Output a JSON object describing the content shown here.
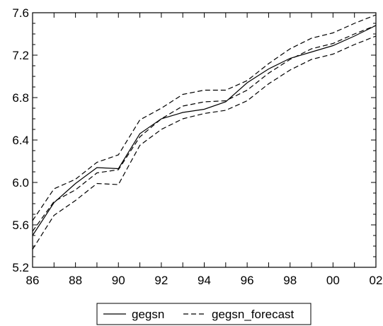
{
  "chart_data": {
    "type": "line",
    "title": "",
    "xlabel": "",
    "ylabel": "",
    "x": [
      1986,
      1987,
      1988,
      1989,
      1990,
      1991,
      1992,
      1993,
      1994,
      1995,
      1996,
      1997,
      1998,
      1999,
      2000,
      2001,
      2002
    ],
    "x_tick_labels": [
      "86",
      "88",
      "90",
      "92",
      "94",
      "96",
      "98",
      "00",
      "02"
    ],
    "x_tick_values": [
      1986,
      1988,
      1990,
      1992,
      1994,
      1996,
      1998,
      2000,
      2002
    ],
    "y_tick_labels": [
      "5.2",
      "5.6",
      "6.0",
      "6.4",
      "6.8",
      "7.2",
      "7.6"
    ],
    "y_tick_values": [
      5.2,
      5.6,
      6.0,
      6.4,
      6.8,
      7.2,
      7.6
    ],
    "xlim": [
      1986,
      2002
    ],
    "ylim": [
      5.2,
      7.6
    ],
    "grid": false,
    "legend_position": "bottom-center",
    "series": [
      {
        "name": "gegsn",
        "style": "solid",
        "values": [
          5.5,
          5.81,
          5.99,
          6.14,
          6.13,
          6.46,
          6.6,
          6.66,
          6.69,
          6.76,
          6.94,
          7.07,
          7.17,
          7.23,
          7.29,
          7.38,
          7.48
        ]
      },
      {
        "name": "gegsn_forecast",
        "style": "dashed",
        "values": [
          5.54,
          5.82,
          5.93,
          6.09,
          6.12,
          6.43,
          6.6,
          6.72,
          6.76,
          6.77,
          6.87,
          7.03,
          7.16,
          7.26,
          7.31,
          7.4,
          7.48
        ]
      },
      {
        "name": "",
        "style": "dashed",
        "role": "upper band",
        "values": [
          5.64,
          5.94,
          6.03,
          6.19,
          6.26,
          6.59,
          6.7,
          6.83,
          6.87,
          6.87,
          6.96,
          7.12,
          7.26,
          7.36,
          7.41,
          7.5,
          7.58
        ]
      },
      {
        "name": "",
        "style": "dashed",
        "role": "lower band",
        "values": [
          5.37,
          5.69,
          5.83,
          5.99,
          5.98,
          6.35,
          6.5,
          6.6,
          6.65,
          6.68,
          6.77,
          6.93,
          7.06,
          7.16,
          7.21,
          7.3,
          7.38
        ]
      }
    ],
    "colors": {
      "line": "#000000",
      "frame": "#000000",
      "background": "#ffffff"
    }
  },
  "legend": {
    "items": [
      {
        "label": "gegsn",
        "style": "solid"
      },
      {
        "label": "gegsn_forecast",
        "style": "dashed"
      }
    ]
  }
}
